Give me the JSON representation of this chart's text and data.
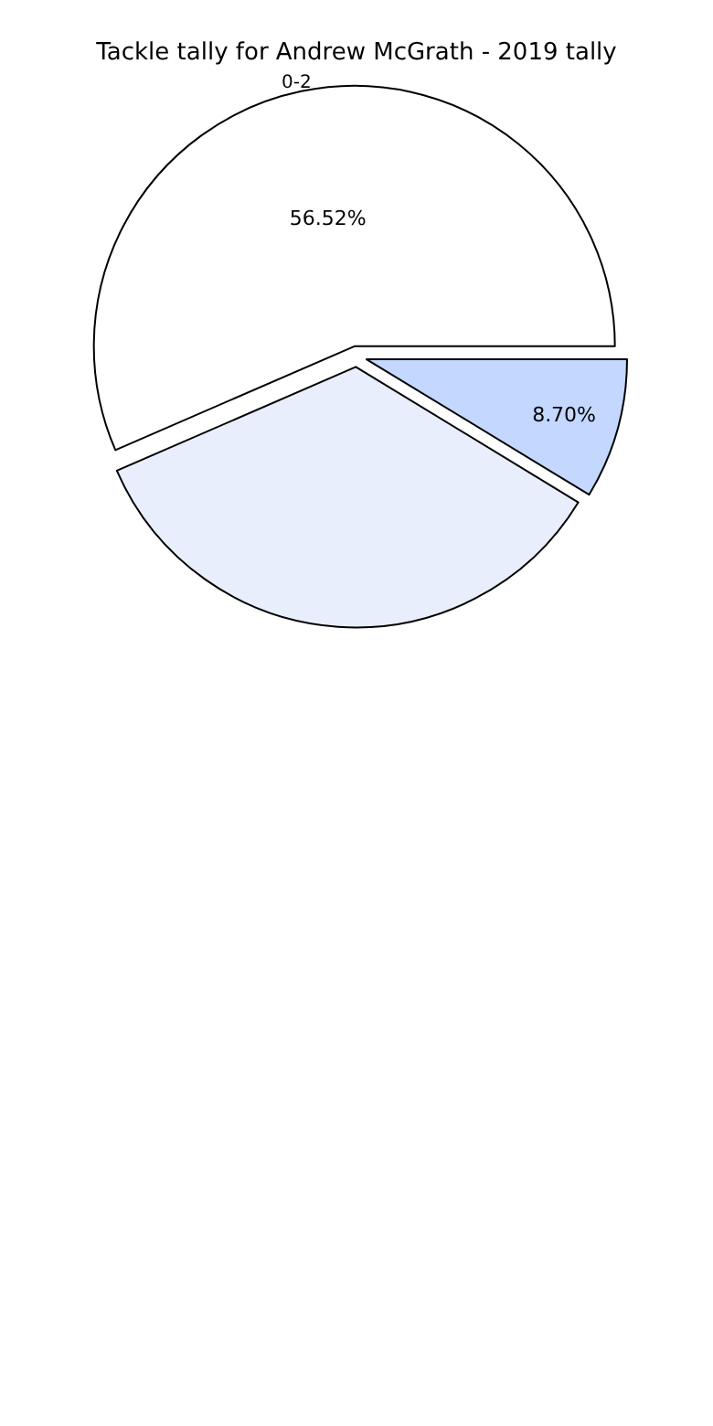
{
  "chart_data": {
    "type": "pie",
    "title": "Tackle tally for Andrew McGrath - 2019 tally",
    "categories": [
      null,
      null,
      "0-2"
    ],
    "values": [
      8.7,
      34.78,
      56.52
    ],
    "value_labels": [
      "8.70%",
      null,
      "56.52%"
    ],
    "colors": [
      "#c4d8ff",
      "#e8eefc",
      "#ffffff"
    ],
    "legend": false
  }
}
